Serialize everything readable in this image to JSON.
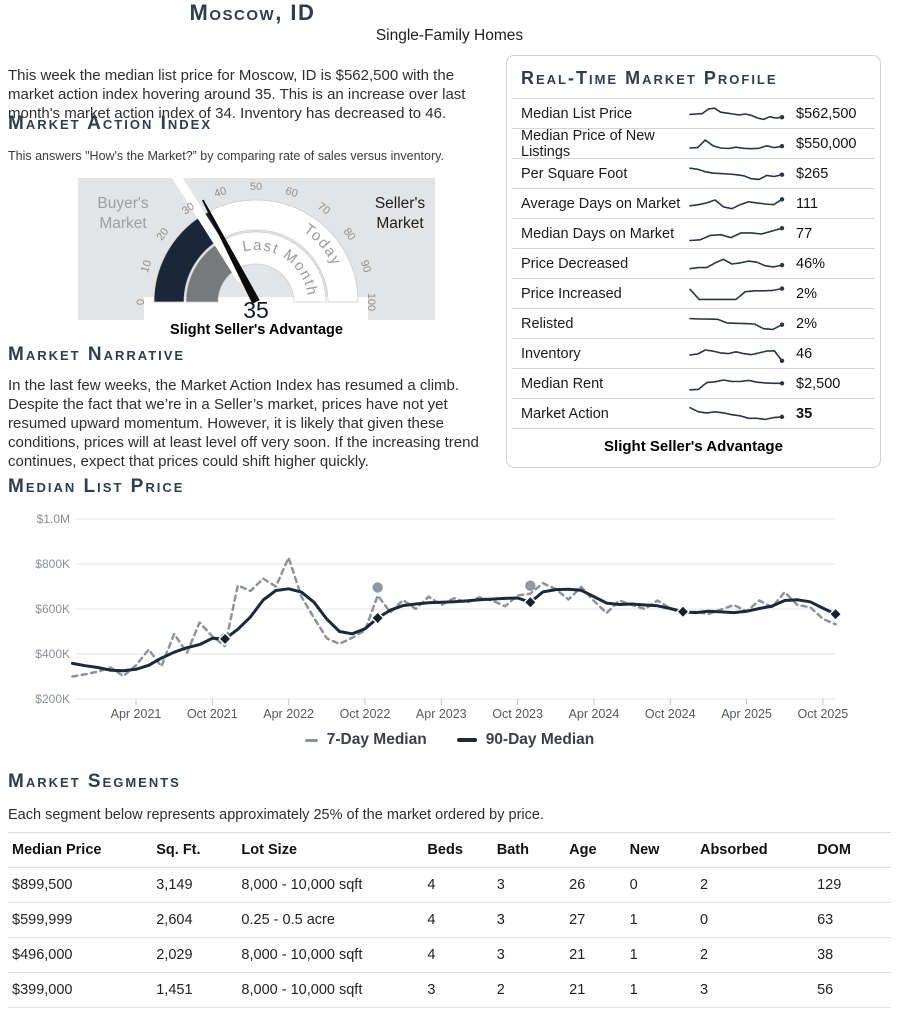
{
  "page": {
    "title": "Moscow, ID",
    "subtitle": "Single-Family Homes"
  },
  "intro": "This week the median list price for Moscow, ID is $562,500 with the market action index hovering around 35. This is an increase over last month's market action index of 34. Inventory has decreased to 46.",
  "market_action_index": {
    "heading": "Market Action Index",
    "description": "This answers \"How's the Market?” by comparing rate of sales versus inventory.",
    "gauge": {
      "value": 35,
      "last_month": 34,
      "min": 0,
      "max": 100,
      "tick_step": 10,
      "left_label_line1": "Buyer's",
      "left_label_line2": "Market",
      "right_label_line1": "Seller's",
      "right_label_line2": "Market",
      "inner_ring_label": "Last Month",
      "outer_ring_label": "Today",
      "value_label": "35",
      "caption": "Slight Seller's Advantage",
      "colors": {
        "today_arc": "#1b2737",
        "last_month_arc": "#77797b",
        "background": "#e3e4e5",
        "needle": "#0b0b0b"
      }
    }
  },
  "profile": {
    "heading": "Real-Time Market Profile",
    "footer": "Slight Seller's Advantage",
    "spark_color": "#2a3642",
    "rows": [
      {
        "label": "Median List Price",
        "value": "$562,500",
        "bold": false,
        "spark": [
          48,
          50,
          52,
          78,
          82,
          60,
          55,
          50,
          45,
          50,
          42,
          28,
          20,
          35,
          27,
          32
        ]
      },
      {
        "label": "Median Price of New Listings",
        "value": "$550,000",
        "bold": false,
        "spark": [
          28,
          30,
          72,
          40,
          28,
          25,
          32,
          26,
          24,
          26,
          40,
          30,
          38
        ]
      },
      {
        "label": "Per Square Foot",
        "value": "$265",
        "bold": false,
        "spark": [
          82,
          76,
          62,
          55,
          52,
          50,
          46,
          40,
          24,
          20,
          42,
          36,
          46
        ]
      },
      {
        "label": "Average Days on Market",
        "value": "111",
        "bold": false,
        "spark": [
          40,
          46,
          56,
          72,
          34,
          24,
          46,
          62,
          56,
          50,
          46,
          76
        ]
      },
      {
        "label": "Median Days on Market",
        "value": "77",
        "bold": false,
        "spark": [
          14,
          18,
          42,
          46,
          30,
          56,
          56,
          50,
          66,
          82
        ]
      },
      {
        "label": "Price Decreased",
        "value": "46%",
        "bold": false,
        "spark": [
          24,
          30,
          30,
          56,
          76,
          50,
          56,
          66,
          60,
          40,
          34,
          44
        ]
      },
      {
        "label": "Price Increased",
        "value": "2%",
        "bold": false,
        "spark": [
          76,
          20,
          20,
          20,
          20,
          20,
          62,
          68,
          68,
          70,
          80
        ]
      },
      {
        "label": "Relisted",
        "value": "2%",
        "bold": false,
        "spark": [
          80,
          78,
          77,
          76,
          56,
          54,
          52,
          50,
          24,
          20,
          46
        ]
      },
      {
        "label": "Inventory",
        "value": "46",
        "bold": false,
        "spark": [
          45,
          50,
          72,
          66,
          56,
          52,
          62,
          52,
          46,
          56,
          66,
          68,
          12
        ]
      },
      {
        "label": "Median Rent",
        "value": "$2,500",
        "bold": false,
        "spark": [
          18,
          20,
          58,
          62,
          72,
          64,
          64,
          70,
          60,
          56,
          54,
          54
        ]
      },
      {
        "label": "Market Action",
        "value": "35",
        "bold": true,
        "spark": [
          85,
          62,
          56,
          62,
          56,
          46,
          40,
          26,
          26,
          20,
          30,
          34
        ]
      }
    ]
  },
  "narrative": {
    "heading": "Market Narrative",
    "text": "In the last few weeks, the Market Action Index has resumed a climb. Despite the fact that we’re in a Seller’s market, prices have not yet resumed upward momentum. However, it is likely that given these conditions, prices will at least level off very soon. If the increasing trend continues, expect that prices could shift higher quickly."
  },
  "chart_section": {
    "heading": "Median List Price"
  },
  "chart_data": {
    "type": "line",
    "title": "Median List Price",
    "x_unit": "month",
    "x_start": "2020-11",
    "x_end": "2025-11",
    "x_tick_labels": [
      "Apr 2021",
      "Oct 2021",
      "Apr 2022",
      "Oct 2022",
      "Apr 2023",
      "Oct 2023",
      "Apr 2024",
      "Oct 2024",
      "Apr 2025",
      "Oct 2025"
    ],
    "x_tick_indices": [
      5,
      11,
      17,
      23,
      29,
      35,
      41,
      47,
      53,
      59
    ],
    "y_ticks": [
      {
        "label": "$1.0M",
        "value": 1000
      },
      {
        "label": "$800K",
        "value": 800
      },
      {
        "label": "$600K",
        "value": 600
      },
      {
        "label": "$400K",
        "value": 400
      },
      {
        "label": "$200K",
        "value": 200
      }
    ],
    "ylim_thousands": [
      200,
      1000
    ],
    "grid": "horizontal",
    "legend_position": "bottom",
    "series": [
      {
        "name": "7-Day Median",
        "style": "dashed",
        "color": "#8e939b",
        "values_thousands": [
          300,
          310,
          322,
          340,
          302,
          350,
          420,
          345,
          490,
          405,
          540,
          478,
          435,
          705,
          680,
          735,
          700,
          828,
          655,
          560,
          470,
          445,
          472,
          505,
          660,
          585,
          640,
          600,
          655,
          618,
          648,
          628,
          652,
          638,
          612,
          660,
          668,
          715,
          688,
          642,
          698,
          636,
          582,
          638,
          618,
          600,
          638,
          604,
          580,
          588,
          578,
          598,
          618,
          590,
          638,
          608,
          675,
          618,
          608,
          556,
          532
        ]
      },
      {
        "name": "90-Day Median",
        "style": "solid",
        "color": "#1d2936",
        "values_thousands": [
          358,
          348,
          340,
          328,
          326,
          332,
          350,
          382,
          408,
          428,
          442,
          470,
          467,
          510,
          565,
          640,
          682,
          690,
          675,
          630,
          555,
          500,
          490,
          512,
          560,
          595,
          615,
          622,
          628,
          630,
          632,
          636,
          641,
          644,
          647,
          649,
          630,
          676,
          686,
          688,
          683,
          655,
          626,
          620,
          622,
          618,
          614,
          602,
          588,
          584,
          590,
          587,
          584,
          590,
          602,
          613,
          638,
          641,
          632,
          604,
          577
        ]
      }
    ],
    "markers": {
      "diamond_series": "90-Day Median",
      "diamond_indices": [
        12,
        24,
        36,
        48,
        60
      ],
      "circle_series": "7-Day Median",
      "circle_indices": [
        12,
        24,
        36
      ]
    }
  },
  "segments": {
    "heading": "Market Segments",
    "description": "Each segment below represents approximately 25% of the market ordered by price.",
    "columns": [
      "Median Price",
      "Sq. Ft.",
      "Lot Size",
      "Beds",
      "Bath",
      "Age",
      "New",
      "Absorbed",
      "DOM"
    ],
    "rows": [
      [
        "$899,500",
        "3,149",
        "8,000 - 10,000 sqft",
        "4",
        "3",
        "26",
        "0",
        "2",
        "129"
      ],
      [
        "$599,999",
        "2,604",
        "0.25 - 0.5 acre",
        "4",
        "3",
        "27",
        "1",
        "0",
        "63"
      ],
      [
        "$496,000",
        "2,029",
        "8,000 - 10,000 sqft",
        "4",
        "3",
        "21",
        "1",
        "2",
        "38"
      ],
      [
        "$399,000",
        "1,451",
        "8,000 - 10,000 sqft",
        "3",
        "2",
        "21",
        "1",
        "3",
        "56"
      ]
    ]
  }
}
